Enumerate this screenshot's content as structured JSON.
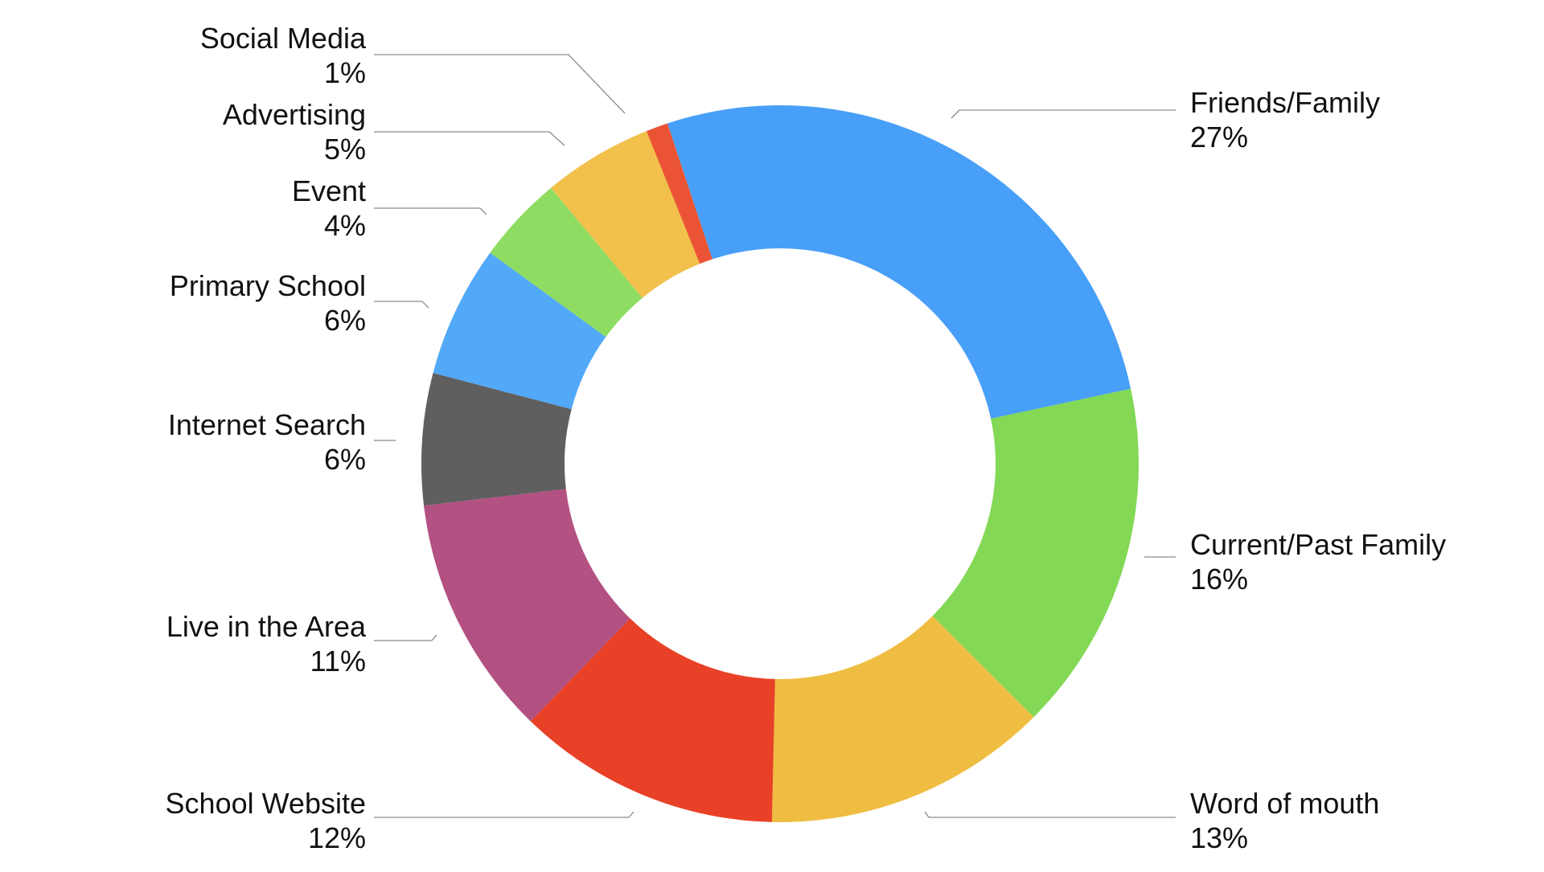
{
  "chart_data": {
    "type": "pie",
    "variant": "donut",
    "start_category": "Friends/Family",
    "direction": "clockwise",
    "legend": "none",
    "categories": [
      "Friends/Family",
      "Current/Past Family",
      "Word of mouth",
      "School Website",
      "Live in the Area",
      "Internet Search",
      "Primary School",
      "Event",
      "Advertising",
      "Social Media"
    ],
    "values": [
      27,
      16,
      13,
      12,
      11,
      6,
      6,
      4,
      5,
      1
    ],
    "value_labels": [
      "27%",
      "16%",
      "13%",
      "12%",
      "11%",
      "6%",
      "6%",
      "4%",
      "5%",
      "1%"
    ],
    "colors": [
      "#489ff8",
      "#83d855",
      "#efbd41",
      "#e84127",
      "#b35183",
      "#5f5f5f",
      "#52a9f8",
      "#8fdc63",
      "#f1c14b",
      "#ea5434"
    ],
    "title": ""
  }
}
